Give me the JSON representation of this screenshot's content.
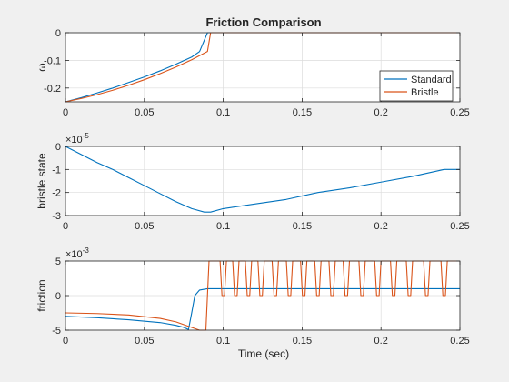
{
  "colors": {
    "standard": "#0072BD",
    "bristle": "#D95319",
    "grid": "#dcdcdc",
    "axis": "#262626",
    "figure_bg": "#f0f0f0",
    "axes_bg": "#ffffff"
  },
  "chart_data": [
    {
      "type": "line",
      "title": "Friction Comparison",
      "xlabel": "",
      "ylabel": "ω",
      "xlim": [
        0,
        0.25
      ],
      "ylim": [
        -0.25,
        0
      ],
      "xticks": [
        0,
        0.05,
        0.1,
        0.15,
        0.2,
        0.25
      ],
      "xtick_labels": [
        "0",
        "0.05",
        "0.1",
        "0.15",
        "0.2",
        "0.25"
      ],
      "yticks": [
        -0.2,
        -0.1,
        0
      ],
      "ytick_labels": [
        "-0.2",
        "-0.1",
        "0"
      ],
      "exponent": "",
      "grid": true,
      "legend": {
        "placement": "bottom-right"
      },
      "series": [
        {
          "name": "Standard",
          "color": "#0072BD",
          "x": [
            0,
            0.01,
            0.02,
            0.03,
            0.04,
            0.05,
            0.06,
            0.07,
            0.08,
            0.085,
            0.09,
            0.1,
            0.15,
            0.2,
            0.25
          ],
          "y": [
            -0.25,
            -0.235,
            -0.218,
            -0.2,
            -0.18,
            -0.16,
            -0.138,
            -0.114,
            -0.088,
            -0.068,
            0,
            0,
            0,
            0,
            0
          ]
        },
        {
          "name": "Bristle",
          "color": "#D95319",
          "x": [
            0,
            0.01,
            0.02,
            0.03,
            0.04,
            0.05,
            0.06,
            0.07,
            0.08,
            0.09,
            0.092,
            0.1,
            0.15,
            0.2,
            0.25
          ],
          "y": [
            -0.25,
            -0.238,
            -0.224,
            -0.208,
            -0.19,
            -0.17,
            -0.148,
            -0.124,
            -0.098,
            -0.068,
            0,
            0,
            0,
            0,
            0
          ]
        }
      ]
    },
    {
      "type": "line",
      "title": "",
      "xlabel": "",
      "ylabel": "bristle state",
      "xlim": [
        0,
        0.25
      ],
      "ylim": [
        -3,
        0
      ],
      "xticks": [
        0,
        0.05,
        0.1,
        0.15,
        0.2,
        0.25
      ],
      "xtick_labels": [
        "0",
        "0.05",
        "0.1",
        "0.15",
        "0.2",
        "0.25"
      ],
      "yticks": [
        -3,
        -2,
        -1,
        0
      ],
      "ytick_labels": [
        "-3",
        "-2",
        "-1",
        "0"
      ],
      "exponent": "×10",
      "exponent_power": "-5",
      "grid": true,
      "series": [
        {
          "name": "",
          "color": "#0072BD",
          "x": [
            0,
            0.01,
            0.02,
            0.03,
            0.04,
            0.05,
            0.06,
            0.07,
            0.08,
            0.088,
            0.092,
            0.1,
            0.12,
            0.14,
            0.16,
            0.18,
            0.2,
            0.22,
            0.24,
            0.25
          ],
          "y": [
            0,
            -0.35,
            -0.7,
            -1.0,
            -1.35,
            -1.7,
            -2.05,
            -2.4,
            -2.7,
            -2.85,
            -2.85,
            -2.7,
            -2.5,
            -2.3,
            -2.0,
            -1.8,
            -1.55,
            -1.3,
            -1.0,
            -1.0
          ]
        }
      ]
    },
    {
      "type": "line",
      "title": "",
      "xlabel": "Time (sec)",
      "ylabel": "friction",
      "xlim": [
        0,
        0.25
      ],
      "ylim": [
        -5,
        5
      ],
      "xticks": [
        0,
        0.05,
        0.1,
        0.15,
        0.2,
        0.25
      ],
      "xtick_labels": [
        "0",
        "0.05",
        "0.1",
        "0.15",
        "0.2",
        "0.25"
      ],
      "yticks": [
        -5,
        0,
        5
      ],
      "ytick_labels": [
        "-5",
        "0",
        "5"
      ],
      "exponent": "×10",
      "exponent_power": "-3",
      "grid": true,
      "series": [
        {
          "name": "Standard",
          "color": "#0072BD",
          "x": [
            0,
            0.02,
            0.04,
            0.06,
            0.07,
            0.075,
            0.078,
            0.08,
            0.082,
            0.085,
            0.09,
            0.1,
            0.15,
            0.2,
            0.25
          ],
          "y": [
            -3.0,
            -3.2,
            -3.5,
            -3.9,
            -4.3,
            -4.6,
            -4.9,
            -2.5,
            0.0,
            0.8,
            1.0,
            1.0,
            1.0,
            1.0,
            1.0
          ]
        },
        {
          "name": "Bristle",
          "color": "#D95319",
          "x": [
            0,
            0.02,
            0.04,
            0.06,
            0.07,
            0.08,
            0.085,
            0.088,
            0.089,
            0.09,
            0.091,
            0.092,
            0.094,
            0.25
          ],
          "y": [
            -2.5,
            -2.6,
            -2.8,
            -3.3,
            -3.8,
            -4.6,
            -5,
            -5,
            -5,
            0,
            5,
            5,
            5,
            5
          ]
        }
      ],
      "bristle_square_wave": {
        "series": "Bristle",
        "start": 0.094,
        "end": 0.25,
        "high": 5,
        "low": 0,
        "low_intervals": [
          [
            0.098,
            0.102
          ],
          [
            0.106,
            0.11
          ],
          [
            0.114,
            0.118
          ],
          [
            0.122,
            0.126
          ],
          [
            0.131,
            0.135
          ],
          [
            0.14,
            0.144
          ],
          [
            0.149,
            0.153
          ],
          [
            0.158,
            0.162
          ],
          [
            0.167,
            0.171
          ],
          [
            0.176,
            0.18
          ],
          [
            0.186,
            0.19
          ],
          [
            0.196,
            0.2
          ],
          [
            0.206,
            0.21
          ],
          [
            0.216,
            0.22
          ],
          [
            0.227,
            0.231
          ],
          [
            0.238,
            0.242
          ]
        ]
      }
    }
  ]
}
